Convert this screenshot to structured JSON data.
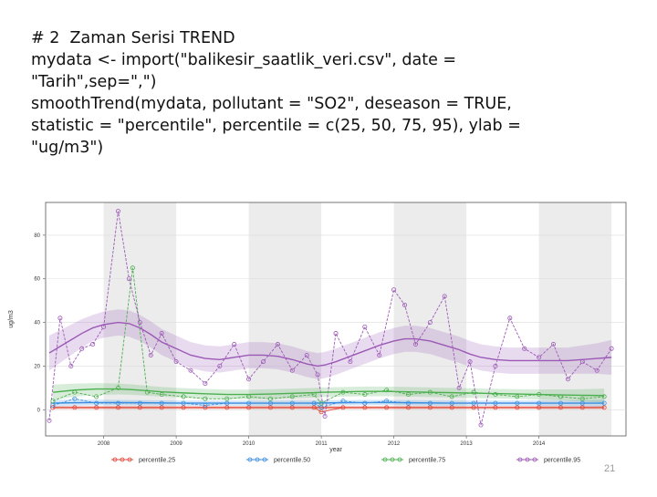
{
  "slide": {
    "code_lines": [
      "# 2  Zaman Serisi TREND",
      "mydata <- import(\"balikesir_saatlik_veri.csv\", date =",
      "\"Tarih\",sep=\",\")",
      "smoothTrend(mydata, pollutant = \"SO2\", deseason = TRUE,",
      "statistic = \"percentile\", percentile = c(25, 50, 75, 95), ylab =",
      "\"ug/m3\")"
    ],
    "page_number": "21"
  },
  "chart_data": {
    "type": "line",
    "title": "",
    "xlabel": "year",
    "ylabel": "ug/m3",
    "xlim": [
      2007.2,
      2015.2
    ],
    "ylim": [
      -12,
      95
    ],
    "x_ticks": [
      2008,
      2009,
      2010,
      2011,
      2012,
      2013,
      2014
    ],
    "y_ticks": [
      0,
      20,
      40,
      60,
      80
    ],
    "grid": true,
    "legend_position": "bottom",
    "series": [
      {
        "name": "percentile.25",
        "color": "#e0483a",
        "x": [
          2007.3,
          2007.6,
          2007.9,
          2008.2,
          2008.5,
          2008.8,
          2009.1,
          2009.4,
          2009.7,
          2010.0,
          2010.3,
          2010.6,
          2010.9,
          2011.0,
          2011.3,
          2011.6,
          2011.9,
          2012.2,
          2012.5,
          2012.8,
          2013.1,
          2013.4,
          2013.7,
          2014.0,
          2014.3,
          2014.6,
          2014.9
        ],
        "values": [
          1,
          1,
          1,
          1,
          1,
          1,
          1,
          1,
          1,
          1,
          1,
          1,
          1,
          -1,
          1,
          1,
          1,
          1,
          1,
          1,
          1,
          1,
          1,
          1,
          1,
          1,
          1
        ],
        "trend": [
          1,
          1,
          1,
          1,
          1,
          1,
          1,
          1,
          1,
          1,
          1,
          1,
          1,
          1,
          1,
          1,
          1,
          1,
          1,
          1,
          1,
          1,
          1,
          1,
          1,
          1,
          1
        ],
        "band": [
          0.8,
          0.8,
          0.8,
          0.8,
          0.8,
          0.8,
          0.8,
          0.8,
          0.8,
          0.8,
          0.8,
          0.8,
          0.8,
          0.8,
          0.8,
          0.8,
          0.8,
          0.8,
          0.8,
          0.8,
          0.8,
          0.8,
          0.8,
          0.8,
          0.8,
          0.8,
          0.8
        ]
      },
      {
        "name": "percentile.50",
        "color": "#3a8ee0",
        "x": [
          2007.3,
          2007.6,
          2007.9,
          2008.2,
          2008.5,
          2008.8,
          2009.1,
          2009.4,
          2009.7,
          2010.0,
          2010.3,
          2010.6,
          2010.9,
          2011.0,
          2011.3,
          2011.6,
          2011.9,
          2012.2,
          2012.5,
          2012.8,
          2013.1,
          2013.4,
          2013.7,
          2014.0,
          2014.3,
          2014.6,
          2014.9
        ],
        "values": [
          2,
          5,
          3,
          3,
          3,
          3,
          3,
          2,
          3,
          3,
          3,
          3,
          3,
          1,
          4,
          3,
          4,
          3,
          3,
          3,
          3,
          3,
          3,
          3,
          3,
          3,
          3
        ],
        "trend": [
          3,
          3.2,
          3.3,
          3.3,
          3.2,
          3.1,
          3,
          3,
          3,
          3,
          3,
          3,
          3,
          3.1,
          3.2,
          3.3,
          3.3,
          3.2,
          3.1,
          3,
          3,
          3,
          3,
          3,
          3,
          3,
          3
        ],
        "band": [
          1.5,
          1.4,
          1.3,
          1.2,
          1.2,
          1.2,
          1.2,
          1.2,
          1.2,
          1.2,
          1.2,
          1.2,
          1.2,
          1.2,
          1.2,
          1.2,
          1.2,
          1.2,
          1.2,
          1.2,
          1.2,
          1.2,
          1.2,
          1.2,
          1.2,
          1.3,
          1.5
        ]
      },
      {
        "name": "percentile.75",
        "color": "#4caf50",
        "x": [
          2007.3,
          2007.6,
          2007.9,
          2008.2,
          2008.4,
          2008.6,
          2008.8,
          2009.1,
          2009.4,
          2009.7,
          2010.0,
          2010.3,
          2010.6,
          2010.9,
          2011.0,
          2011.3,
          2011.6,
          2011.9,
          2012.2,
          2012.5,
          2012.8,
          2013.1,
          2013.4,
          2013.7,
          2014.0,
          2014.3,
          2014.6,
          2014.9
        ],
        "values": [
          4,
          8,
          6,
          10,
          65,
          8,
          7,
          6,
          5,
          5,
          6,
          5,
          6,
          7,
          3,
          8,
          7,
          9,
          7,
          8,
          6,
          8,
          7,
          6,
          7,
          6,
          5,
          6
        ],
        "trend": [
          8,
          9,
          9.5,
          9.5,
          9.2,
          8.7,
          8.2,
          7.7,
          7.3,
          7,
          7,
          7.2,
          7.5,
          7.8,
          8,
          8.2,
          8.4,
          8.4,
          8.2,
          8,
          7.8,
          7.6,
          7.4,
          7.2,
          7,
          6.8,
          6.6,
          6.5
        ],
        "band": [
          3.5,
          3,
          2.7,
          2.5,
          2.4,
          2.3,
          2.2,
          2.2,
          2.2,
          2.2,
          2.2,
          2.2,
          2.2,
          2.2,
          2.2,
          2.2,
          2.2,
          2.2,
          2.2,
          2.2,
          2.2,
          2.2,
          2.2,
          2.2,
          2.3,
          2.5,
          2.8,
          3.2
        ]
      },
      {
        "name": "percentile.95",
        "color": "#9b59b6",
        "x": [
          2007.25,
          2007.4,
          2007.55,
          2007.7,
          2007.85,
          2008.0,
          2008.2,
          2008.35,
          2008.5,
          2008.65,
          2008.8,
          2009.0,
          2009.2,
          2009.4,
          2009.6,
          2009.8,
          2010.0,
          2010.2,
          2010.4,
          2010.6,
          2010.8,
          2010.95,
          2011.05,
          2011.2,
          2011.4,
          2011.6,
          2011.8,
          2012.0,
          2012.15,
          2012.3,
          2012.5,
          2012.7,
          2012.9,
          2013.05,
          2013.2,
          2013.4,
          2013.6,
          2013.8,
          2014.0,
          2014.2,
          2014.4,
          2014.6,
          2014.8,
          2015.0
        ],
        "values": [
          -5,
          42,
          20,
          28,
          30,
          38,
          91,
          60,
          40,
          25,
          35,
          22,
          18,
          12,
          20,
          30,
          14,
          22,
          30,
          18,
          25,
          16,
          -3,
          35,
          22,
          38,
          25,
          55,
          48,
          30,
          40,
          52,
          10,
          22,
          -7,
          20,
          42,
          28,
          24,
          30,
          14,
          22,
          18,
          28
        ],
        "trend": [
          26,
          29,
          32,
          35,
          37.5,
          39,
          40,
          39.5,
          37.5,
          34.5,
          31,
          28,
          25,
          23.5,
          23,
          24,
          25,
          25,
          24.5,
          23,
          21,
          20,
          20.5,
          22,
          24.5,
          27,
          29.5,
          31.5,
          32.5,
          32.5,
          31.5,
          29.5,
          27.5,
          25.5,
          24,
          23,
          22.5,
          22.5,
          22.5,
          22.5,
          22.5,
          23,
          23.5,
          24
        ],
        "band": [
          8,
          7.5,
          7,
          6.5,
          6,
          6,
          6,
          6,
          6,
          6,
          6,
          6,
          6,
          6,
          6,
          6,
          6,
          6,
          6,
          6,
          6,
          6,
          6,
          6,
          6,
          6,
          6,
          6,
          6,
          6,
          6,
          6,
          6,
          6,
          6,
          6,
          6,
          6,
          6,
          6,
          6,
          6.5,
          7,
          8
        ]
      }
    ]
  }
}
